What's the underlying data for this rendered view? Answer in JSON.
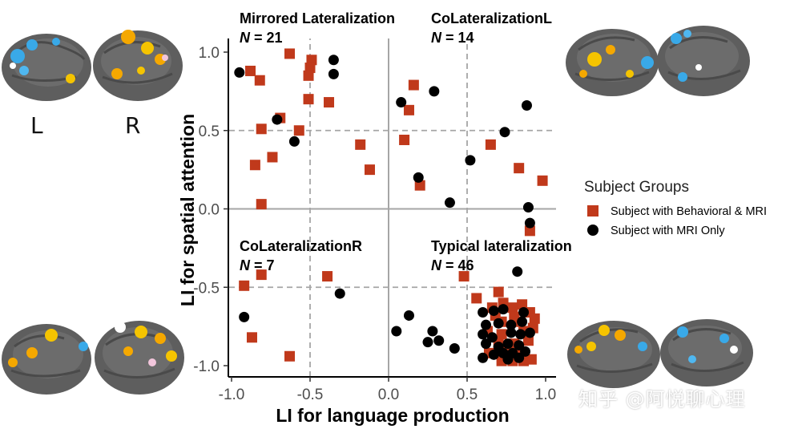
{
  "chart_data": {
    "type": "scatter",
    "xlabel": "LI for language production",
    "ylabel": "LI for spatial attention",
    "xlim": [
      -1.0,
      1.0
    ],
    "ylim": [
      -1.0,
      1.0
    ],
    "xticks": [
      -1.0,
      -0.5,
      0.0,
      0.5,
      1.0
    ],
    "yticks": [
      -1.0,
      -0.5,
      0.0,
      0.5,
      1.0
    ],
    "xtick_labels": [
      "-1.0",
      "-0.5",
      "0.0",
      "0.5",
      "1.0"
    ],
    "ytick_labels": [
      "-1.0",
      "-0.5",
      "0.0",
      "0.5",
      "1.0"
    ],
    "reference_lines": {
      "solid": {
        "x": 0.0,
        "y": 0.0
      },
      "dashed": {
        "x": [
          -0.5,
          0.5
        ],
        "y": [
          -0.5,
          0.5
        ]
      }
    },
    "quadrants": [
      {
        "title": "Mirrored Lateralization",
        "n_label": "N = 21"
      },
      {
        "title": "CoLateralizationL",
        "n_label": "N = 14"
      },
      {
        "title": "CoLateralizationR",
        "n_label": "N = 7"
      },
      {
        "title": "Typical lateralization",
        "n_label": "N = 46"
      }
    ],
    "legend": {
      "title": "Subject Groups",
      "position": "right",
      "entries": [
        "Subject with Behavioral & MRI",
        "Subject with MRI Only"
      ]
    },
    "series": [
      {
        "name": "Subject with Behavioral & MRI",
        "marker": "square",
        "color": "#c0391b",
        "points": [
          [
            -0.63,
            0.99
          ],
          [
            -0.88,
            0.88
          ],
          [
            -0.82,
            0.82
          ],
          [
            -0.49,
            0.95
          ],
          [
            -0.5,
            0.9
          ],
          [
            -0.51,
            0.85
          ],
          [
            -0.51,
            0.7
          ],
          [
            -0.38,
            0.68
          ],
          [
            -0.69,
            0.58
          ],
          [
            -0.81,
            0.51
          ],
          [
            -0.57,
            0.5
          ],
          [
            -0.74,
            0.33
          ],
          [
            -0.85,
            0.28
          ],
          [
            -0.18,
            0.41
          ],
          [
            -0.12,
            0.25
          ],
          [
            -0.81,
            0.03
          ],
          [
            0.16,
            0.79
          ],
          [
            0.13,
            0.63
          ],
          [
            0.1,
            0.44
          ],
          [
            0.2,
            0.15
          ],
          [
            0.65,
            0.41
          ],
          [
            0.83,
            0.26
          ],
          [
            0.98,
            0.18
          ],
          [
            0.9,
            -0.14
          ],
          [
            -0.92,
            -0.49
          ],
          [
            -0.81,
            -0.42
          ],
          [
            -0.87,
            -0.82
          ],
          [
            -0.63,
            -0.94
          ],
          [
            -0.39,
            -0.43
          ],
          [
            0.48,
            -0.43
          ],
          [
            0.56,
            -0.57
          ],
          [
            0.7,
            -0.53
          ],
          [
            0.66,
            -0.63
          ],
          [
            0.73,
            -0.6
          ],
          [
            0.79,
            -0.63
          ],
          [
            0.85,
            -0.61
          ],
          [
            0.68,
            -0.68
          ],
          [
            0.72,
            -0.72
          ],
          [
            0.8,
            -0.69
          ],
          [
            0.82,
            -0.72
          ],
          [
            0.9,
            -0.66
          ],
          [
            0.93,
            -0.7
          ],
          [
            0.63,
            -0.78
          ],
          [
            0.72,
            -0.8
          ],
          [
            0.86,
            -0.78
          ],
          [
            0.92,
            -0.76
          ],
          [
            0.7,
            -0.85
          ],
          [
            0.8,
            -0.86
          ],
          [
            0.89,
            -0.84
          ],
          [
            0.64,
            -0.92
          ],
          [
            0.75,
            -0.9
          ],
          [
            0.82,
            -0.93
          ],
          [
            0.72,
            -0.97
          ],
          [
            0.79,
            -0.97
          ],
          [
            0.86,
            -0.97
          ],
          [
            0.91,
            -0.96
          ]
        ]
      },
      {
        "name": "Subject with MRI Only",
        "marker": "circle",
        "color": "#000000",
        "points": [
          [
            -0.95,
            0.87
          ],
          [
            -0.35,
            0.95
          ],
          [
            -0.35,
            0.86
          ],
          [
            -0.71,
            0.57
          ],
          [
            -0.6,
            0.43
          ],
          [
            0.08,
            0.68
          ],
          [
            0.29,
            0.75
          ],
          [
            0.88,
            0.66
          ],
          [
            0.74,
            0.49
          ],
          [
            0.19,
            0.2
          ],
          [
            0.52,
            0.31
          ],
          [
            0.39,
            0.04
          ],
          [
            0.89,
            0.01
          ],
          [
            0.9,
            -0.09
          ],
          [
            -0.92,
            -0.69
          ],
          [
            -0.31,
            -0.54
          ],
          [
            0.05,
            -0.78
          ],
          [
            0.13,
            -0.68
          ],
          [
            0.28,
            -0.78
          ],
          [
            0.25,
            -0.85
          ],
          [
            0.32,
            -0.84
          ],
          [
            0.42,
            -0.89
          ],
          [
            0.82,
            -0.4
          ],
          [
            0.6,
            -0.66
          ],
          [
            0.67,
            -0.65
          ],
          [
            0.73,
            -0.64
          ],
          [
            0.86,
            -0.66
          ],
          [
            0.62,
            -0.74
          ],
          [
            0.7,
            -0.73
          ],
          [
            0.78,
            -0.74
          ],
          [
            0.85,
            -0.72
          ],
          [
            0.6,
            -0.8
          ],
          [
            0.66,
            -0.82
          ],
          [
            0.78,
            -0.79
          ],
          [
            0.84,
            -0.8
          ],
          [
            0.9,
            -0.79
          ],
          [
            0.62,
            -0.86
          ],
          [
            0.7,
            -0.88
          ],
          [
            0.76,
            -0.86
          ],
          [
            0.83,
            -0.87
          ],
          [
            0.73,
            -0.92
          ],
          [
            0.79,
            -0.92
          ],
          [
            0.87,
            -0.91
          ],
          [
            0.6,
            -0.95
          ],
          [
            0.67,
            -0.93
          ],
          [
            0.76,
            -0.96
          ],
          [
            0.83,
            -0.95
          ]
        ]
      }
    ]
  },
  "figure": {
    "hemisphere_labels": {
      "left": "L",
      "right": "R"
    },
    "watermark": "知乎 @阿悦聊心理"
  }
}
